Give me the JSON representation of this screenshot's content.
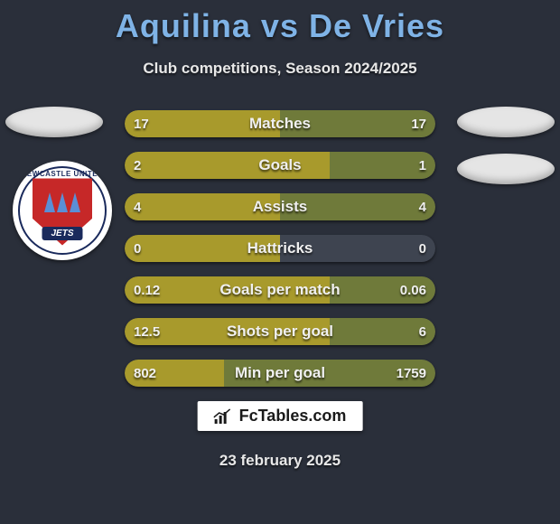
{
  "title": "Aquilina vs De Vries",
  "subtitle": "Club competitions, Season 2024/2025",
  "date": "23 february 2025",
  "logo_text": "FcTables.com",
  "crest": {
    "top_text": "NEWCASTLE UNITED",
    "banner": "JETS"
  },
  "colors": {
    "left_bar": "#a89a2c",
    "right_bar": "#6f7a3a",
    "track": "#3e4450",
    "background": "#2a2f3a",
    "title": "#7fb3e6"
  },
  "bars": [
    {
      "label": "Matches",
      "left": "17",
      "right": "17",
      "left_pct": 50,
      "right_pct": 50
    },
    {
      "label": "Goals",
      "left": "2",
      "right": "1",
      "left_pct": 66,
      "right_pct": 34
    },
    {
      "label": "Assists",
      "left": "4",
      "right": "4",
      "left_pct": 50,
      "right_pct": 50
    },
    {
      "label": "Hattricks",
      "left": "0",
      "right": "0",
      "left_pct": 50,
      "right_pct": 0
    },
    {
      "label": "Goals per match",
      "left": "0.12",
      "right": "0.06",
      "left_pct": 66,
      "right_pct": 34
    },
    {
      "label": "Shots per goal",
      "left": "12.5",
      "right": "6",
      "left_pct": 66,
      "right_pct": 34
    },
    {
      "label": "Min per goal",
      "left": "802",
      "right": "1759",
      "left_pct": 32,
      "right_pct": 68
    }
  ]
}
